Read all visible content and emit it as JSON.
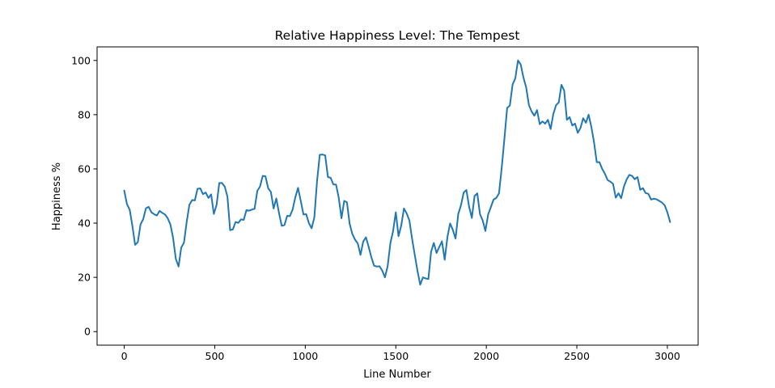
{
  "chart_data": {
    "type": "line",
    "title": "Relative Happiness Level: The Tempest",
    "xlabel": "Line Number",
    "ylabel": "Happiness %",
    "xlim": [
      -150,
      3170
    ],
    "ylim": [
      -5,
      105
    ],
    "xticks": [
      0,
      500,
      1000,
      1500,
      2000,
      2500,
      3000
    ],
    "yticks": [
      0,
      20,
      40,
      60,
      80,
      100
    ],
    "grid": false,
    "line_color": "#1f77b4",
    "series": [
      {
        "x": [
          0,
          15,
          30,
          45,
          60,
          75,
          90,
          105,
          120,
          135,
          150,
          165,
          180,
          195,
          210,
          225,
          240,
          255,
          270,
          285,
          300,
          315,
          330,
          345,
          360,
          375,
          390,
          405,
          420,
          435,
          450,
          465,
          480,
          495,
          510,
          525,
          540,
          555,
          570,
          585,
          600,
          615,
          630,
          645,
          660,
          675,
          690,
          705,
          720,
          735,
          750,
          765,
          780,
          795,
          810,
          825,
          840,
          855,
          870,
          885,
          900,
          915,
          930,
          945,
          960,
          975,
          990,
          1005,
          1020,
          1035,
          1050,
          1065,
          1080,
          1095,
          1110,
          1125,
          1140,
          1155,
          1170,
          1185,
          1200,
          1215,
          1230,
          1245,
          1260,
          1275,
          1290,
          1305,
          1320,
          1335,
          1350,
          1365,
          1380,
          1395,
          1410,
          1425,
          1440,
          1455,
          1470,
          1485,
          1500,
          1515,
          1530,
          1545,
          1560,
          1575,
          1590,
          1605,
          1620,
          1635,
          1650,
          1665,
          1680,
          1695,
          1710,
          1725,
          1740,
          1755,
          1770,
          1785,
          1800,
          1815,
          1830,
          1845,
          1860,
          1875,
          1890,
          1905,
          1920,
          1935,
          1950,
          1965,
          1980,
          1995,
          2010,
          2025,
          2040,
          2055,
          2070,
          2085,
          2100,
          2115,
          2130,
          2145,
          2160,
          2175,
          2190,
          2205,
          2220,
          2235,
          2250,
          2265,
          2280,
          2295,
          2310,
          2325,
          2340,
          2355,
          2370,
          2385,
          2400,
          2415,
          2430,
          2445,
          2460,
          2475,
          2490,
          2505,
          2520,
          2535,
          2550,
          2565,
          2580,
          2595,
          2610,
          2625,
          2640,
          2655,
          2670,
          2685,
          2700,
          2715,
          2730,
          2745,
          2760,
          2775,
          2790,
          2805,
          2820,
          2835,
          2850,
          2865,
          2880,
          2895,
          2910,
          2925,
          2940,
          2955,
          2970,
          2985,
          3000,
          3015
        ],
        "values": [
          52,
          47,
          45,
          39,
          32,
          33,
          39.5,
          41.5,
          45.5,
          46,
          44,
          43.3,
          42.8,
          44.5,
          43.8,
          43.2,
          41.8,
          39.5,
          34.5,
          26.8,
          24,
          31,
          32.8,
          40.5,
          46.8,
          48.5,
          48.4,
          52.7,
          52.8,
          50.7,
          51.3,
          49.3,
          50.6,
          43.4,
          46.7,
          54.8,
          54.8,
          53.5,
          49.8,
          37.4,
          37.7,
          40.4,
          40.1,
          41.4,
          41.2,
          44.8,
          44.6,
          45,
          45.3,
          51.9,
          53.5,
          57.4,
          57.3,
          52.9,
          51.5,
          45.4,
          49.1,
          43.7,
          39,
          39.3,
          42.7,
          42.6,
          45,
          49.5,
          53,
          48.2,
          43.2,
          43.3,
          40,
          38.1,
          42.1,
          55.5,
          65.2,
          65.3,
          65,
          57,
          56.7,
          54.3,
          54.2,
          49.3,
          41.8,
          48.2,
          47.7,
          39.8,
          36,
          33.9,
          32.5,
          28.3,
          33.2,
          34.8,
          31.3,
          27.4,
          24.3,
          24,
          24.1,
          22.5,
          20,
          24.1,
          32.6,
          37.1,
          44,
          35.2,
          39.1,
          45.4,
          43.6,
          41,
          34.2,
          28.2,
          22.3,
          17.3,
          20,
          19.6,
          19.4,
          29.5,
          32.7,
          29,
          31.2,
          33.3,
          26.5,
          34.8,
          39.9,
          37.5,
          34.3,
          43.4,
          46.6,
          51.3,
          52.2,
          46,
          41.9,
          50,
          51,
          43.3,
          41,
          37.1,
          43.2,
          45.9,
          48.7,
          49.3,
          51,
          60.4,
          71.2,
          82.5,
          83.4,
          91.1,
          93.4,
          100,
          98.5,
          93.7,
          90.1,
          83.6,
          81.2,
          79.6,
          81.7,
          76.5,
          77.5,
          76.7,
          78.1,
          74.7,
          80.2,
          83.5,
          84.5,
          91,
          88.9,
          78.1,
          79.1,
          76,
          76.7,
          73.3,
          75.1,
          78.7,
          77,
          80,
          75.5,
          69.8,
          62.5,
          62.5,
          60,
          58.2,
          55.9,
          55.3,
          54.5,
          49.4,
          51,
          49.2,
          53.5,
          56.1,
          57.8,
          57.4,
          56.2,
          57,
          52.3,
          52.9,
          51.1,
          50.8,
          48.7,
          49,
          48.8,
          48.2,
          47.6,
          46.6,
          44,
          40.4
        ]
      }
    ]
  }
}
